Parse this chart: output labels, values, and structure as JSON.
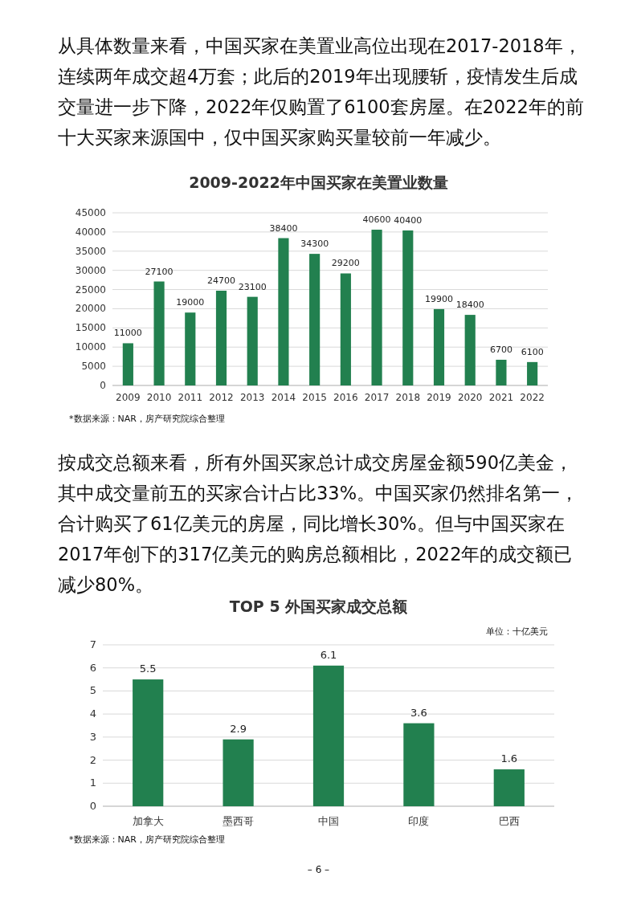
{
  "chart_data": [
    {
      "type": "bar",
      "title": "2009-2022年中国买家在美置业数量",
      "categories": [
        "2009",
        "2010",
        "2011",
        "2012",
        "2013",
        "2014",
        "2015",
        "2016",
        "2017",
        "2018",
        "2019",
        "2020",
        "2021",
        "2022"
      ],
      "values": [
        11000,
        27100,
        19000,
        24700,
        23100,
        38400,
        34300,
        29200,
        40600,
        40400,
        19900,
        18400,
        6700,
        6100
      ],
      "color": "#22804f",
      "ylim": [
        0,
        45000
      ],
      "yticks": [
        0,
        5000,
        10000,
        15000,
        20000,
        25000,
        30000,
        35000,
        40000,
        45000
      ],
      "grid": "y",
      "data_labels": true,
      "annotations": [
        "从具体数量来看，中国买家在美置业高位出现在2017-2018年，连续两年成交超4万套；此后的2019年出现腰斩，疫情发生后成交量进一步下降，2022年仅购置了6100套房屋。在2022年的前十大买家来源国中，仅中国买家购买量较前一年减少。",
        "*数据来源：NAR，房产研究院综合整理"
      ]
    },
    {
      "type": "bar",
      "title": "TOP 5 外国买家成交总额",
      "ylabel": "单位：十亿美元",
      "categories": [
        "加拿大",
        "墨西哥",
        "中国",
        "印度",
        "巴西"
      ],
      "values": [
        5.5,
        2.9,
        6.1,
        3.6,
        1.6
      ],
      "color": "#22804f",
      "ylim": [
        0,
        7
      ],
      "yticks": [
        0,
        1,
        2,
        3,
        4,
        5,
        6,
        7
      ],
      "grid": "y",
      "data_labels": true,
      "annotations": [
        "按成交总额来看，所有外国买家总计成交房屋金额590亿美金，其中成交量前五的买家合计占比33%。中国买家仍然排名第一，合计购买了61亿美元的房屋，同比增长30%。但与中国买家在2017年创下的317亿美元的购房总额相比，2022年的成交额已减少80%。",
        "*数据来源：NAR，房产研究院综合整理",
        "– 6 –"
      ]
    }
  ]
}
